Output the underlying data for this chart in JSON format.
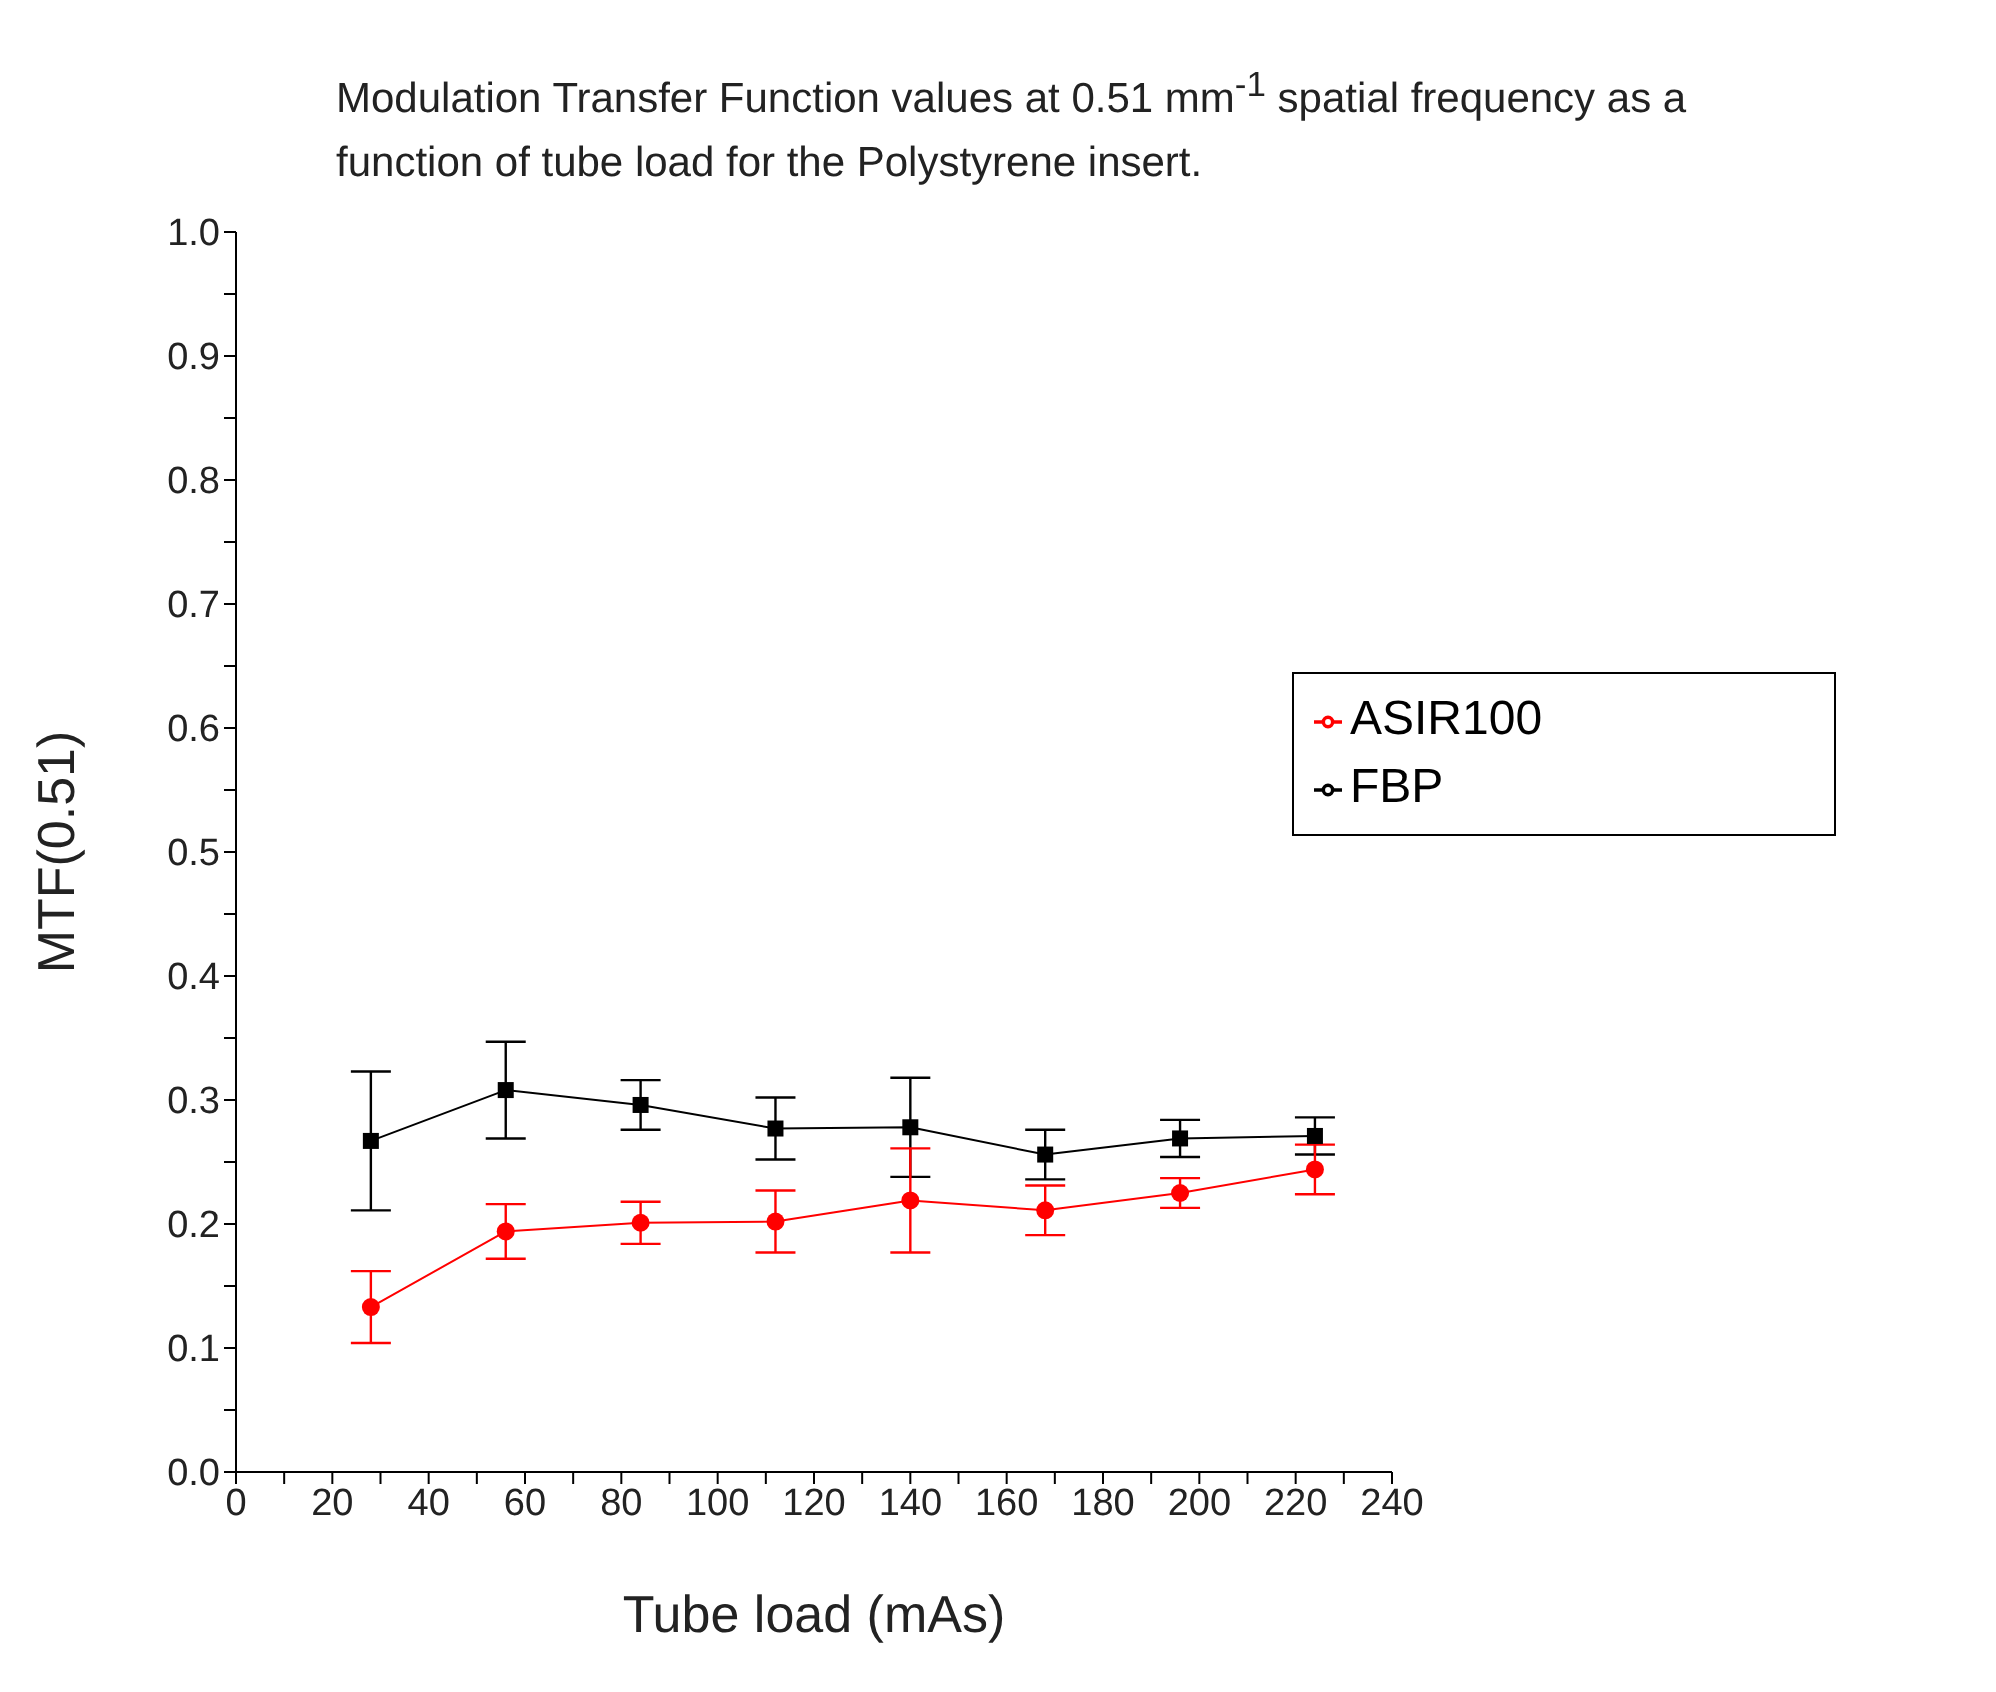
{
  "chart_data": {
    "type": "line",
    "title": "Modulation Transfer Function values at 0.51 mm$^{-1}$ spatial frequency as a function of tube load for the Polystyrene insert.",
    "xlabel": "Tube load  (mAs)",
    "ylabel": "MTF(0.51)",
    "x": [
      28,
      56,
      84,
      112,
      140,
      168,
      196,
      224
    ],
    "series": [
      {
        "name": "FBP",
        "color": "#000000",
        "marker": "square",
        "values": [
          0.267,
          0.308,
          0.296,
          0.277,
          0.278,
          0.256,
          0.269,
          0.271
        ],
        "errors": [
          0.056,
          0.039,
          0.02,
          0.025,
          0.04,
          0.02,
          0.015,
          0.015
        ]
      },
      {
        "name": "ASIR100",
        "color": "#ff0000",
        "marker": "circle",
        "values": [
          0.133,
          0.194,
          0.201,
          0.202,
          0.219,
          0.211,
          0.225,
          0.244
        ],
        "errors": [
          0.029,
          0.022,
          0.017,
          0.025,
          0.042,
          0.02,
          0.012,
          0.02
        ]
      }
    ],
    "xlim": [
      0,
      240
    ],
    "xticks": [
      0,
      {
        "value": 10,
        "label": null
      },
      20,
      {
        "value": 30,
        "label": null
      },
      40,
      {
        "value": 50,
        "label": null
      },
      60,
      {
        "value": 70,
        "label": null
      },
      80,
      {
        "value": 90,
        "label": null
      },
      100,
      {
        "value": 110,
        "label": null
      },
      120,
      {
        "value": 130,
        "label": null
      },
      140,
      {
        "value": 150,
        "label": null
      },
      160,
      {
        "value": 170,
        "label": null
      },
      180,
      {
        "value": 190,
        "label": null
      },
      200,
      {
        "value": 210,
        "label": null
      },
      220,
      {
        "value": 230,
        "label": null
      },
      240
    ],
    "ylim": [
      0,
      1
    ],
    "yticks": [
      {
        "value": 0,
        "label": "0.0"
      },
      {
        "value": 0.05,
        "label": null
      },
      0.1,
      {
        "value": 0.15,
        "label": null
      },
      0.2,
      {
        "value": 0.25,
        "label": null
      },
      0.3,
      {
        "value": 0.35,
        "label": null
      },
      0.4,
      {
        "value": 0.45,
        "label": null
      },
      0.5,
      {
        "value": 0.55,
        "label": null
      },
      0.6,
      {
        "value": 0.65,
        "label": null
      },
      0.7,
      {
        "value": 0.75,
        "label": null
      },
      0.8,
      {
        "value": 0.85,
        "label": null
      },
      0.9,
      {
        "value": 0.95,
        "label": null
      },
      {
        "value": 1,
        "label": "1.0"
      }
    ],
    "grid": false,
    "legend": "right",
    "line_style": "solid"
  }
}
